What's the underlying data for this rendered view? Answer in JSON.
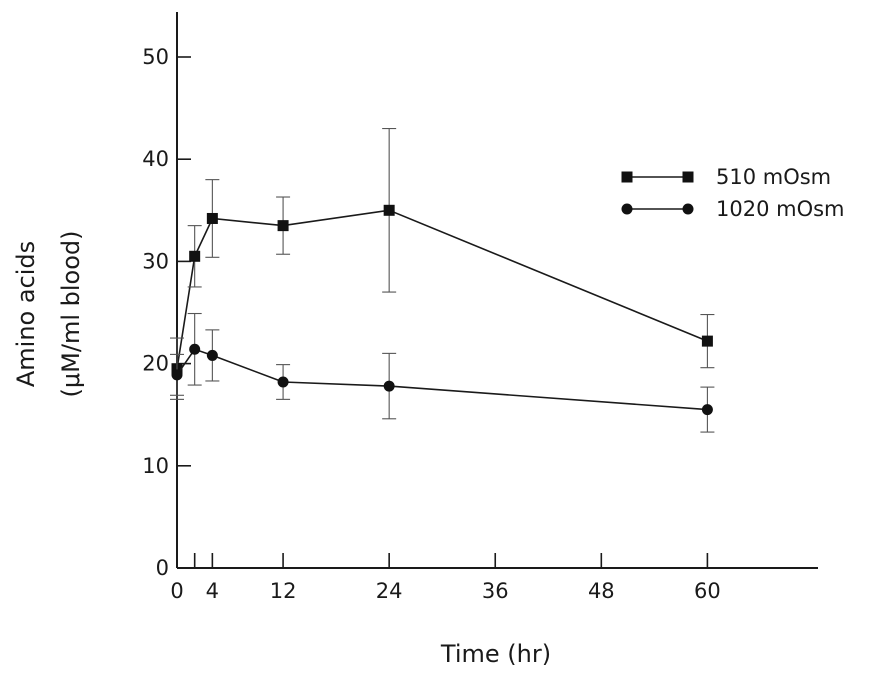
{
  "chart_data": {
    "type": "line",
    "xlabel": "Time (hr)",
    "ylabel_lines": [
      "Amino acids",
      "(μM/ml blood)"
    ],
    "xlim": [
      0,
      64
    ],
    "ylim": [
      0,
      55
    ],
    "xticks": [
      0,
      2,
      4,
      12,
      24,
      36,
      48,
      60
    ],
    "xtick_labels": [
      "0",
      "",
      "4",
      "12",
      "24",
      "36",
      "48",
      "60"
    ],
    "yticks": [
      0,
      10,
      20,
      30,
      40,
      50
    ],
    "ytick_labels": [
      "0",
      "10",
      "20",
      "30",
      "40",
      "50"
    ],
    "grid": false,
    "legend_position": "top-right",
    "series": [
      {
        "name": "510 mOsm",
        "marker": "square",
        "points": [
          {
            "x": 0,
            "y": 19.5,
            "err": 3.0
          },
          {
            "x": 2,
            "y": 30.5,
            "err": 3.0
          },
          {
            "x": 4,
            "y": 34.2,
            "err": 3.8
          },
          {
            "x": 12,
            "y": 33.5,
            "err": 2.8
          },
          {
            "x": 24,
            "y": 35.0,
            "err": 8.0
          },
          {
            "x": 60,
            "y": 22.2,
            "err": 2.6
          }
        ]
      },
      {
        "name": "1020 mOsm",
        "marker": "circle",
        "points": [
          {
            "x": 0,
            "y": 18.9,
            "err": 2.0
          },
          {
            "x": 2,
            "y": 21.4,
            "err": 3.5
          },
          {
            "x": 4,
            "y": 20.8,
            "err": 2.5
          },
          {
            "x": 12,
            "y": 18.2,
            "err": 1.7
          },
          {
            "x": 24,
            "y": 17.8,
            "err": 3.2
          },
          {
            "x": 60,
            "y": 15.5,
            "err": 2.2
          }
        ]
      }
    ]
  }
}
